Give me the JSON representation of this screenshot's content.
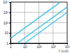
{
  "chart_data": {
    "type": "line",
    "log": true,
    "grid": true,
    "x_label": "f (c/s)",
    "xlim": [
      1,
      10000
    ],
    "xticks": [
      1,
      10,
      {
        "value": 100,
        "label": "10²"
      },
      {
        "value": 1000,
        "label": "10³"
      },
      {
        "value": 10000,
        "label": "10⁴"
      }
    ],
    "ylim": [
      1,
      10000
    ],
    "yticks": [
      1,
      10,
      {
        "value": 100,
        "label": "10²"
      },
      {
        "value": 1000,
        "label": "10³"
      },
      {
        "value": 10000,
        "label": "10⁴"
      }
    ],
    "series": [
      {
        "color": "#3cc3e6",
        "x": [
          1,
          3000
        ],
        "values": [
          3,
          9000
        ]
      },
      {
        "color": "#3cc3e6",
        "x": [
          3,
          10000
        ],
        "values": [
          1,
          3333
        ]
      },
      {
        "color": "#3cc3e6",
        "x": [
          10,
          10000
        ],
        "values": [
          1,
          1000
        ]
      }
    ]
  }
}
